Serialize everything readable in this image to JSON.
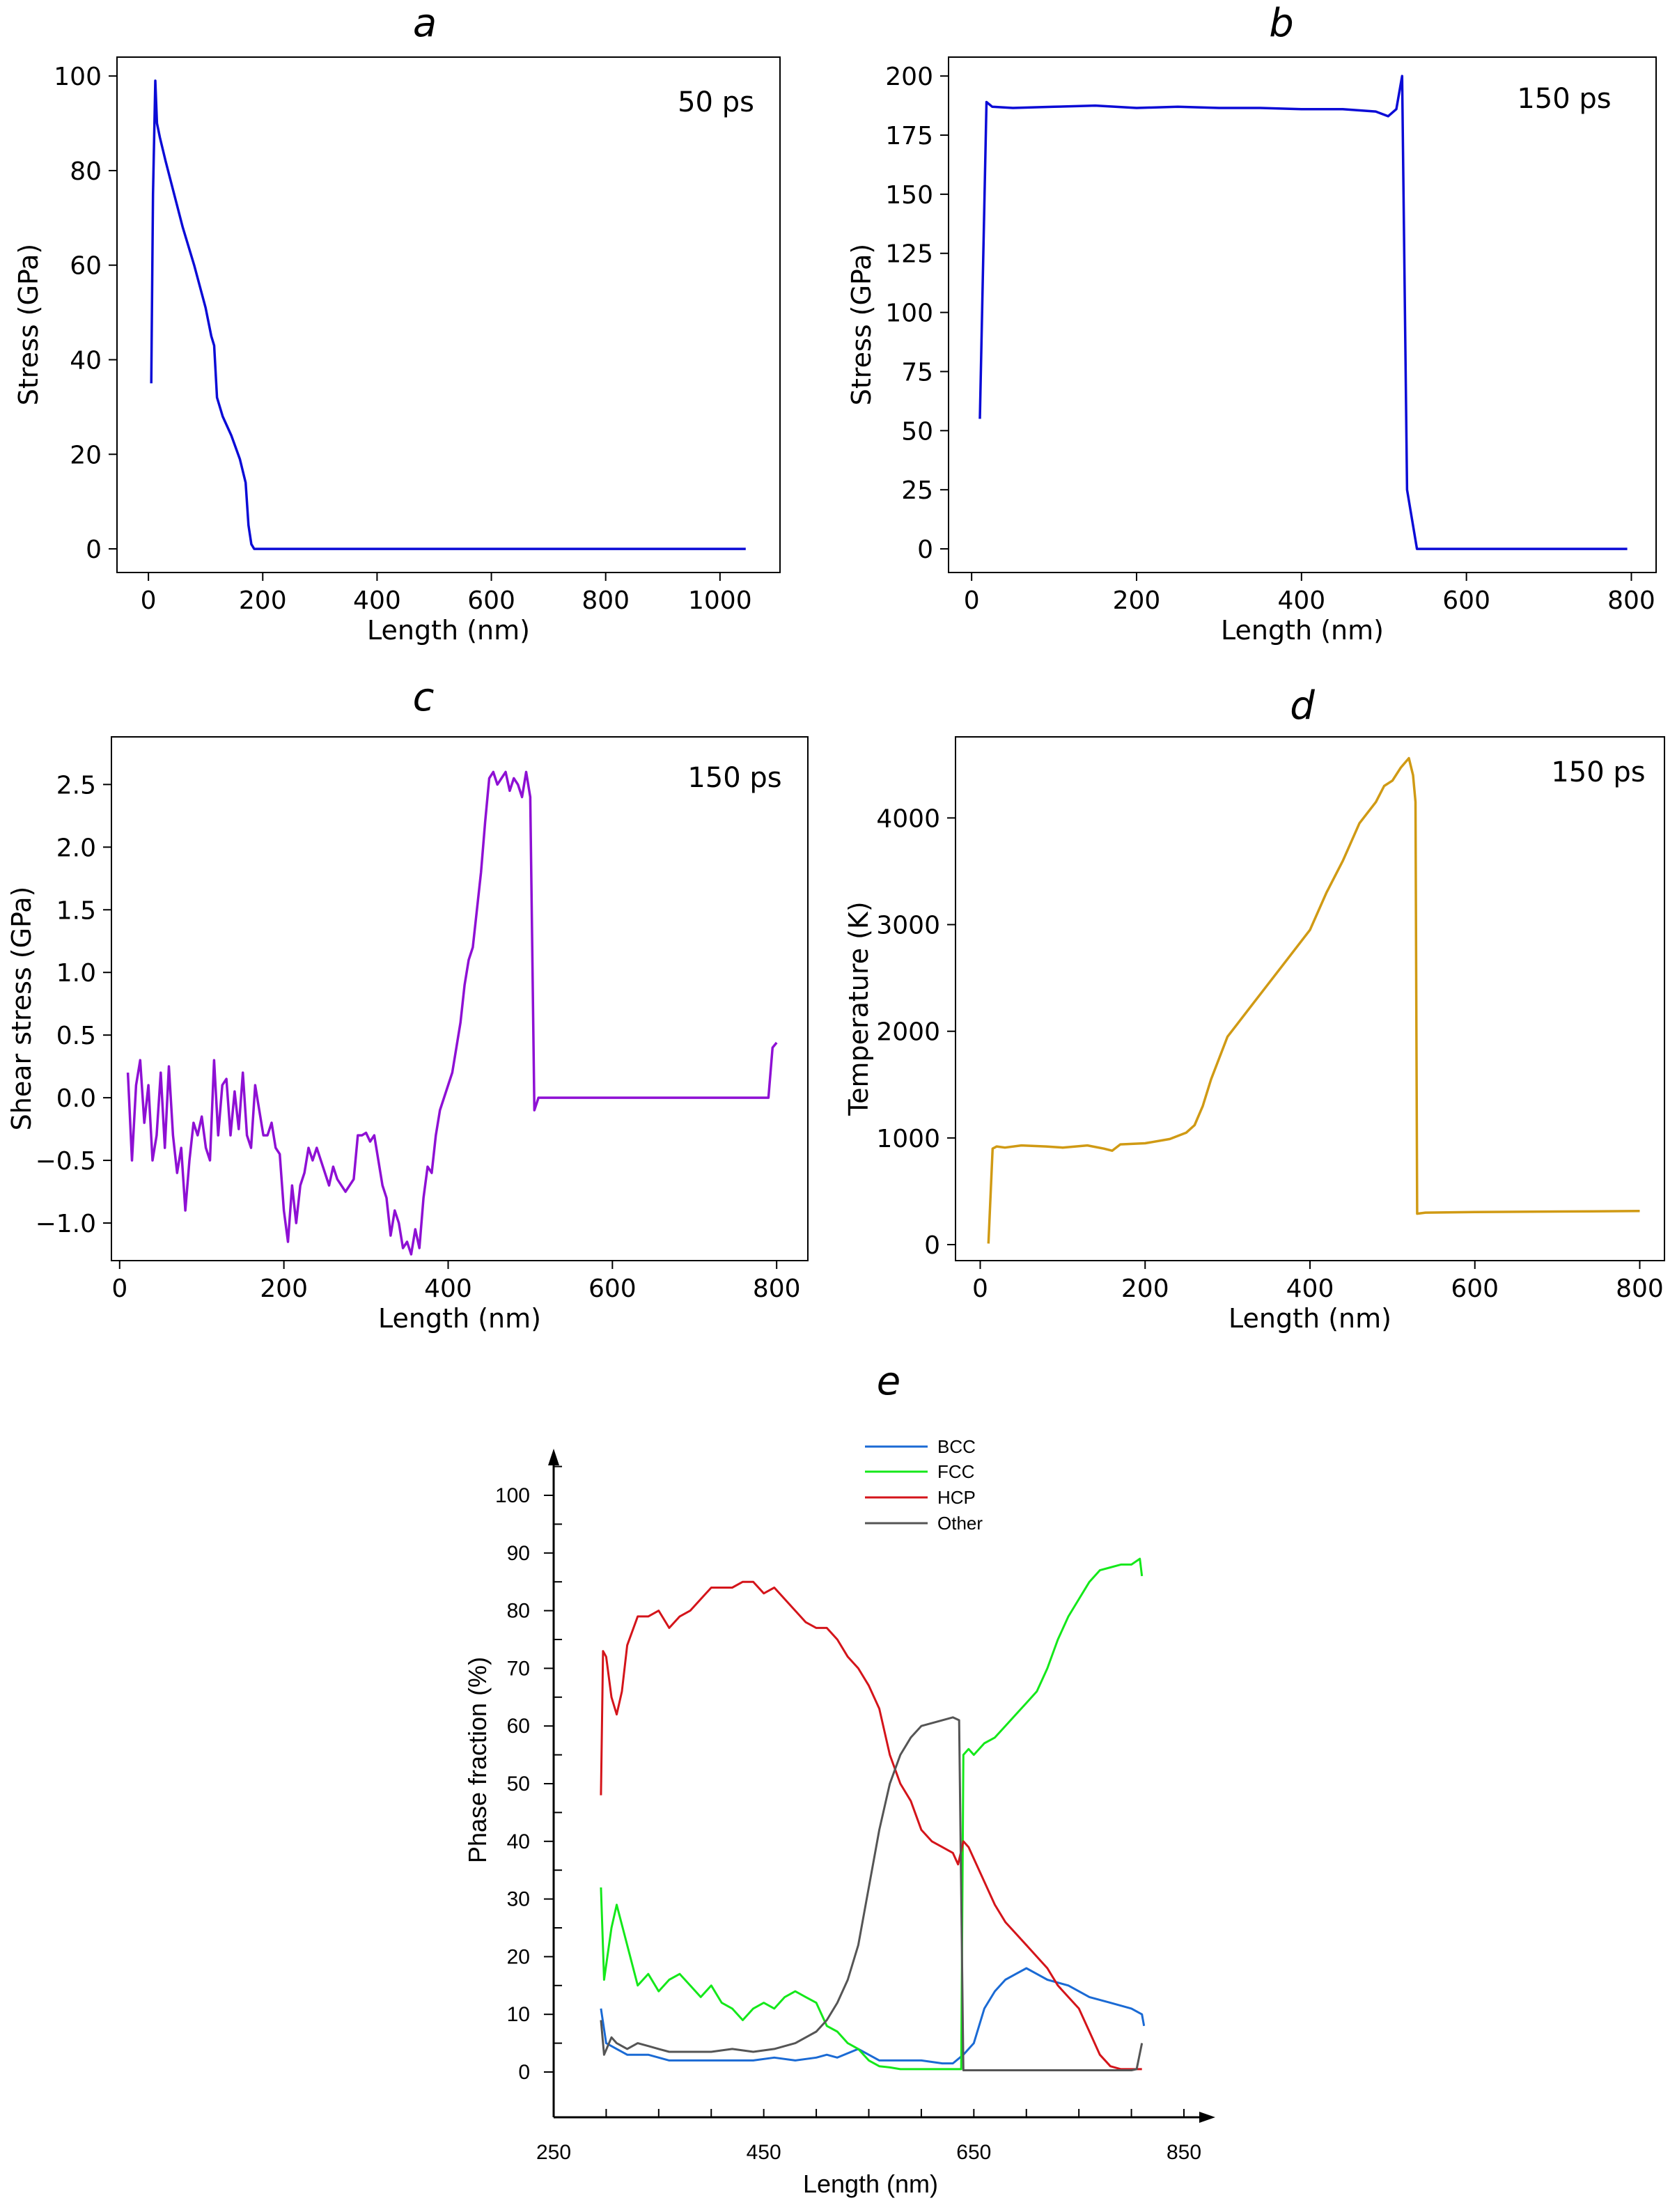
{
  "chart_data": [
    {
      "id": "a",
      "type": "line",
      "title": "a",
      "annotation": "50 ps",
      "xlabel": "Length (nm)",
      "ylabel": "Stress (GPa)",
      "xlim": [
        -55,
        1105
      ],
      "ylim": [
        -5,
        104
      ],
      "xticks": [
        0,
        200,
        400,
        600,
        800,
        1000
      ],
      "yticks": [
        0,
        20,
        40,
        60,
        80,
        100
      ],
      "color": "#0b0bd6",
      "series": [
        {
          "name": "stress",
          "x": [
            5,
            8,
            12,
            15,
            20,
            30,
            45,
            60,
            80,
            100,
            110,
            115,
            120,
            130,
            145,
            160,
            170,
            175,
            180,
            185,
            200,
            300,
            400,
            500,
            600,
            700,
            800,
            900,
            1000,
            1045
          ],
          "y": [
            35,
            75,
            99,
            90,
            87,
            82,
            75,
            68,
            60,
            51,
            45,
            43,
            32,
            28,
            24,
            19,
            14,
            5,
            1,
            0,
            0,
            0,
            0,
            0,
            0,
            0,
            0,
            0,
            0,
            0
          ]
        }
      ]
    },
    {
      "id": "b",
      "type": "line",
      "title": "b",
      "annotation": "150 ps",
      "xlabel": "Length (nm)",
      "ylabel": "Stress (GPa)",
      "xlim": [
        -28,
        830
      ],
      "ylim": [
        -10,
        208
      ],
      "xticks": [
        0,
        200,
        400,
        600,
        800
      ],
      "yticks": [
        0,
        25,
        50,
        75,
        100,
        125,
        150,
        175,
        200
      ],
      "color": "#0b0bd6",
      "series": [
        {
          "name": "stress",
          "x": [
            10,
            18,
            25,
            50,
            100,
            150,
            200,
            250,
            300,
            350,
            400,
            450,
            490,
            505,
            515,
            522,
            528,
            540,
            600,
            700,
            795
          ],
          "y": [
            55,
            189,
            187,
            186.5,
            187,
            187.5,
            186.5,
            187,
            186.5,
            186.5,
            186,
            186,
            185,
            183,
            186,
            200,
            25,
            0,
            0,
            0,
            0
          ]
        }
      ]
    },
    {
      "id": "c",
      "type": "line",
      "title": "c",
      "annotation": "150 ps",
      "xlabel": "Length (nm)",
      "ylabel": "Shear stress (GPa)",
      "xlim": [
        -10,
        838
      ],
      "ylim": [
        -1.3,
        2.88
      ],
      "xticks": [
        0,
        200,
        400,
        600,
        800
      ],
      "yticks": [
        -1.0,
        -0.5,
        0.0,
        0.5,
        1.0,
        1.5,
        2.0,
        2.5
      ],
      "ytick_labels": [
        "−1.0",
        "−0.5",
        "0.0",
        "0.5",
        "1.0",
        "1.5",
        "2.0",
        "2.5"
      ],
      "color": "#8e10d4",
      "series": [
        {
          "name": "shear",
          "x": [
            10,
            15,
            20,
            25,
            30,
            35,
            40,
            45,
            50,
            55,
            60,
            65,
            70,
            75,
            80,
            85,
            90,
            95,
            100,
            105,
            110,
            115,
            120,
            125,
            130,
            135,
            140,
            145,
            150,
            155,
            160,
            165,
            170,
            175,
            180,
            185,
            190,
            195,
            200,
            205,
            210,
            215,
            220,
            225,
            230,
            235,
            240,
            245,
            250,
            255,
            260,
            265,
            270,
            275,
            280,
            285,
            290,
            295,
            300,
            305,
            310,
            315,
            320,
            325,
            330,
            335,
            340,
            345,
            350,
            355,
            360,
            365,
            370,
            375,
            380,
            385,
            390,
            395,
            400,
            405,
            410,
            415,
            420,
            425,
            430,
            435,
            440,
            445,
            450,
            455,
            460,
            465,
            470,
            475,
            480,
            485,
            490,
            495,
            500,
            505,
            510,
            515,
            520,
            525,
            530,
            535,
            540,
            560,
            600,
            650,
            700,
            750,
            790,
            795,
            800
          ],
          "y": [
            0.2,
            -0.5,
            0.1,
            0.3,
            -0.2,
            0.1,
            -0.5,
            -0.3,
            0.2,
            -0.4,
            0.25,
            -0.3,
            -0.6,
            -0.4,
            -0.9,
            -0.5,
            -0.2,
            -0.3,
            -0.15,
            -0.4,
            -0.5,
            0.3,
            -0.3,
            0.1,
            0.15,
            -0.3,
            0.05,
            -0.25,
            0.2,
            -0.3,
            -0.4,
            0.1,
            -0.1,
            -0.3,
            -0.3,
            -0.2,
            -0.4,
            -0.45,
            -0.9,
            -1.15,
            -0.7,
            -1.0,
            -0.7,
            -0.6,
            -0.4,
            -0.5,
            -0.4,
            -0.5,
            -0.6,
            -0.7,
            -0.55,
            -0.65,
            -0.7,
            -0.75,
            -0.7,
            -0.65,
            -0.3,
            -0.3,
            -0.28,
            -0.35,
            -0.3,
            -0.5,
            -0.7,
            -0.8,
            -1.1,
            -0.9,
            -1.0,
            -1.2,
            -1.15,
            -1.25,
            -1.05,
            -1.2,
            -0.8,
            -0.55,
            -0.6,
            -0.3,
            -0.1,
            0.0,
            0.1,
            0.2,
            0.4,
            0.6,
            0.9,
            1.1,
            1.2,
            1.5,
            1.8,
            2.2,
            2.55,
            2.6,
            2.5,
            2.55,
            2.6,
            2.45,
            2.55,
            2.5,
            2.4,
            2.6,
            2.4,
            -0.1,
            0.0,
            0.0,
            0.0,
            0.0,
            0.0,
            0.0,
            0.0,
            0.0,
            0.0,
            0.0,
            0.0,
            0.0,
            0.0,
            0.4,
            0.44
          ]
        }
      ]
    },
    {
      "id": "d",
      "type": "line",
      "title": "d",
      "annotation": "150 ps",
      "xlabel": "Length (nm)",
      "ylabel": "Temperature (K)",
      "xlim": [
        -30,
        830
      ],
      "ylim": [
        -150,
        4760
      ],
      "xticks": [
        0,
        200,
        400,
        600,
        800
      ],
      "yticks": [
        0,
        1000,
        2000,
        3000,
        4000
      ],
      "color": "#d09a14",
      "series": [
        {
          "name": "temperature",
          "x": [
            10,
            15,
            20,
            30,
            50,
            80,
            100,
            130,
            150,
            160,
            170,
            200,
            230,
            250,
            260,
            270,
            280,
            300,
            310,
            330,
            350,
            370,
            400,
            420,
            440,
            460,
            480,
            490,
            500,
            510,
            520,
            525,
            528,
            530,
            540,
            600,
            700,
            800
          ],
          "y": [
            10,
            900,
            920,
            910,
            930,
            920,
            910,
            930,
            900,
            880,
            940,
            950,
            990,
            1050,
            1120,
            1300,
            1550,
            1950,
            2050,
            2250,
            2450,
            2650,
            2950,
            3300,
            3600,
            3950,
            4150,
            4300,
            4350,
            4470,
            4560,
            4400,
            4150,
            290,
            300,
            305,
            310,
            315
          ]
        }
      ]
    },
    {
      "id": "e",
      "type": "line",
      "title": "e",
      "xlabel": "Length (nm)",
      "ylabel": "Phase fraction (%)",
      "xlim": [
        250,
        850
      ],
      "ylim": [
        -5,
        108
      ],
      "xticks": [
        250,
        450,
        650,
        850
      ],
      "yticks": [
        0,
        10,
        20,
        30,
        40,
        50,
        60,
        70,
        80,
        90,
        100
      ],
      "legend_position": "top-center",
      "series": [
        {
          "name": "BCC",
          "color": "#1a6ad4",
          "x": [
            295,
            300,
            310,
            320,
            340,
            360,
            380,
            400,
            420,
            440,
            460,
            480,
            500,
            510,
            520,
            540,
            560,
            580,
            600,
            620,
            630,
            640,
            650,
            660,
            670,
            680,
            690,
            700,
            710,
            720,
            740,
            760,
            780,
            800,
            810,
            812
          ],
          "y": [
            11,
            5,
            4,
            3,
            3,
            2,
            2,
            2,
            2,
            2,
            2.5,
            2,
            2.5,
            3,
            2.5,
            4,
            2,
            2,
            2,
            1.5,
            1.5,
            3,
            5,
            11,
            14,
            16,
            17,
            18,
            17,
            16,
            15,
            13,
            12,
            11,
            10,
            8
          ]
        },
        {
          "name": "FCC",
          "color": "#14e81a",
          "x": [
            295,
            298,
            305,
            310,
            320,
            330,
            340,
            350,
            360,
            370,
            380,
            390,
            400,
            410,
            420,
            430,
            440,
            450,
            460,
            470,
            480,
            490,
            500,
            510,
            520,
            530,
            540,
            550,
            560,
            570,
            580,
            590,
            600,
            610,
            620,
            630,
            638,
            640,
            645,
            650,
            660,
            670,
            680,
            690,
            700,
            710,
            720,
            730,
            740,
            750,
            760,
            770,
            780,
            790,
            800,
            808,
            810
          ],
          "y": [
            32,
            16,
            25,
            29,
            22,
            15,
            17,
            14,
            16,
            17,
            15,
            13,
            15,
            12,
            11,
            9,
            11,
            12,
            11,
            13,
            14,
            13,
            12,
            8,
            7,
            5,
            4,
            2,
            1,
            0.8,
            0.5,
            0.5,
            0.5,
            0.5,
            0.5,
            0.5,
            0.5,
            55,
            56,
            55,
            57,
            58,
            60,
            62,
            64,
            66,
            70,
            75,
            79,
            82,
            85,
            87,
            87.5,
            88,
            88,
            89,
            86
          ]
        },
        {
          "name": "HCP",
          "color": "#d4141a",
          "x": [
            295,
            297,
            300,
            305,
            310,
            315,
            320,
            330,
            340,
            350,
            360,
            370,
            380,
            390,
            400,
            410,
            420,
            430,
            440,
            450,
            460,
            470,
            480,
            490,
            500,
            510,
            520,
            530,
            540,
            550,
            560,
            570,
            580,
            590,
            600,
            610,
            620,
            630,
            635,
            640,
            645,
            650,
            660,
            670,
            680,
            690,
            700,
            710,
            720,
            730,
            740,
            750,
            760,
            770,
            780,
            790,
            800,
            810
          ],
          "y": [
            48,
            73,
            72,
            65,
            62,
            66,
            74,
            79,
            79,
            80,
            77,
            79,
            80,
            82,
            84,
            84,
            84,
            85,
            85,
            83,
            84,
            82,
            80,
            78,
            77,
            77,
            75,
            72,
            70,
            67,
            63,
            55,
            50,
            47,
            42,
            40,
            39,
            38,
            36,
            40,
            39,
            37,
            33,
            29,
            26,
            24,
            22,
            20,
            18,
            15,
            13,
            11,
            7,
            3,
            1,
            0.5,
            0.5,
            0.5
          ]
        },
        {
          "name": "Other",
          "color": "#555555",
          "x": [
            295,
            298,
            305,
            310,
            320,
            330,
            340,
            350,
            360,
            380,
            400,
            420,
            440,
            460,
            480,
            500,
            510,
            520,
            530,
            540,
            550,
            560,
            570,
            580,
            590,
            600,
            610,
            620,
            630,
            636,
            640,
            650,
            700,
            750,
            800,
            805,
            810
          ],
          "y": [
            9,
            3,
            6,
            5,
            4,
            5,
            4.5,
            4,
            3.5,
            3.5,
            3.5,
            4,
            3.5,
            4,
            5,
            7,
            9,
            12,
            16,
            22,
            32,
            42,
            50,
            55,
            58,
            60,
            60.5,
            61,
            61.5,
            61,
            0.3,
            0.3,
            0.3,
            0.3,
            0.3,
            0.5,
            5
          ]
        }
      ]
    }
  ]
}
